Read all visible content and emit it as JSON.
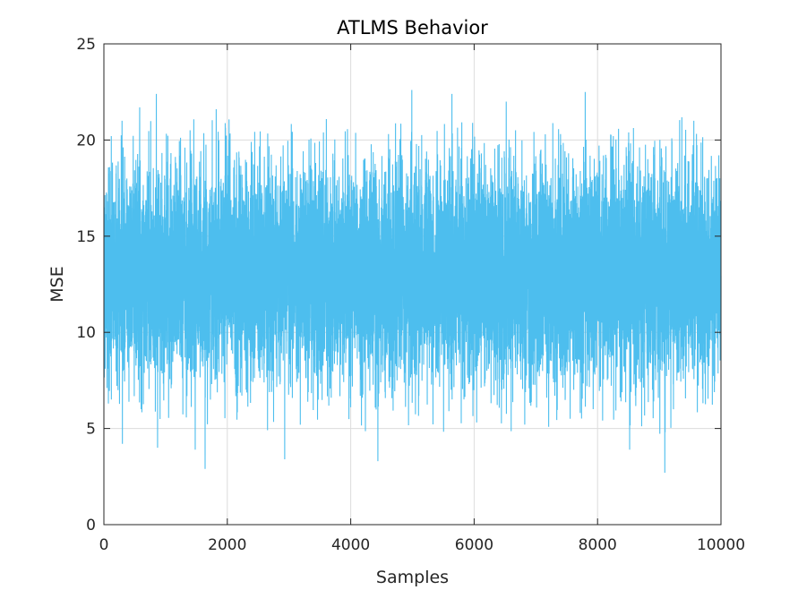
{
  "chart_data": {
    "type": "line",
    "title": "ATLMS Behavior",
    "xlabel": "Samples",
    "ylabel": "MSE",
    "xlim": [
      0,
      10000
    ],
    "ylim": [
      0,
      25
    ],
    "xticks": [
      0,
      2000,
      4000,
      6000,
      8000,
      10000
    ],
    "yticks": [
      0,
      5,
      10,
      15,
      20,
      25
    ],
    "xtick_labels": [
      "0",
      "2000",
      "4000",
      "6000",
      "8000",
      "10000"
    ],
    "ytick_labels": [
      "0",
      "5",
      "10",
      "15",
      "20",
      "25"
    ],
    "grid": true,
    "series": [
      {
        "color": "#4dbeee",
        "x_start": 1,
        "x_end": 10000,
        "n_points": 10000,
        "mean": 13.1,
        "typical_band": [
          8.5,
          17.5
        ],
        "extreme_peaks": [
          {
            "x": 580,
            "y": 21.7
          },
          {
            "x": 850,
            "y": 22.4
          },
          {
            "x": 1820,
            "y": 21.6
          },
          {
            "x": 4990,
            "y": 22.6
          },
          {
            "x": 5640,
            "y": 22.4
          },
          {
            "x": 6520,
            "y": 22.0
          },
          {
            "x": 7800,
            "y": 22.5
          },
          {
            "x": 9560,
            "y": 21.0
          }
        ],
        "extreme_troughs": [
          {
            "x": 300,
            "y": 4.2
          },
          {
            "x": 870,
            "y": 4.0
          },
          {
            "x": 1480,
            "y": 3.9
          },
          {
            "x": 1640,
            "y": 2.9
          },
          {
            "x": 2930,
            "y": 3.4
          },
          {
            "x": 4440,
            "y": 3.3
          },
          {
            "x": 8520,
            "y": 3.9
          },
          {
            "x": 9090,
            "y": 2.7
          }
        ]
      }
    ]
  }
}
